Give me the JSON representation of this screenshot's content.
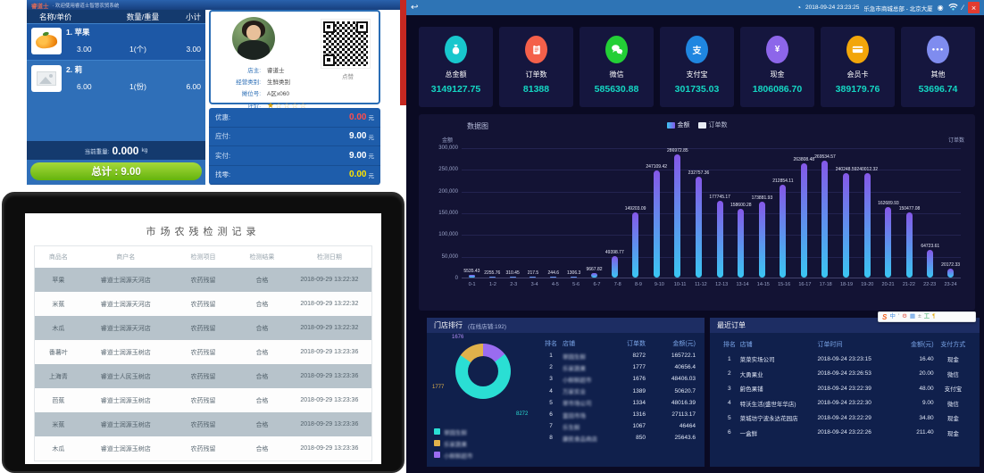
{
  "pos": {
    "window_logo": "睿道士",
    "window_title_rest": "· 欢迎使用睿道士智慧农贸系统",
    "list": {
      "headers": [
        "名称/单价",
        "数量/重量",
        "小计"
      ],
      "items": [
        {
          "line": "1. 苹果",
          "price": "3.00",
          "qty": "1(个)",
          "subtotal": "3.00",
          "thumb": "fruit"
        },
        {
          "line": "2. 莉",
          "price": "6.00",
          "qty": "1(份)",
          "subtotal": "6.00",
          "thumb": "placeholder"
        }
      ],
      "weight_label": "当前重量:",
      "weight_value": "0.000",
      "weight_unit": "kg",
      "total_text": "总计 : 9.00"
    },
    "merchant": {
      "fields": [
        {
          "label": "店主:",
          "value": "睿道士"
        },
        {
          "label": "经营类别:",
          "value": "生鲜类别"
        },
        {
          "label": "摊位号:",
          "value": "A区x060"
        }
      ],
      "rating_label": "评价:",
      "rating_stars": 1,
      "rating_total": 5,
      "qr_caption": "点赞"
    },
    "payment": {
      "rows": [
        {
          "label": "优惠:",
          "value": "0.00",
          "unit": "元",
          "color": "#ff4d4d"
        },
        {
          "label": "应付:",
          "value": "9.00",
          "unit": "元",
          "color": "#ffffff"
        },
        {
          "label": "实付:",
          "value": "9.00",
          "unit": "元",
          "color": "#ffffff"
        },
        {
          "label": "找零:",
          "value": "0.00",
          "unit": "元",
          "color": "#ffe400"
        }
      ]
    }
  },
  "tablet": {
    "title": "市场农残检测记录",
    "headers": [
      "商品名",
      "商户名",
      "检测项目",
      "检测结果",
      "检测日期"
    ],
    "rows": [
      [
        "苹果",
        "睿道士润源天河店",
        "农药残留",
        "合格",
        "2018-09-29 13:22:32"
      ],
      [
        "米蕉",
        "睿道士润源天河店",
        "农药残留",
        "合格",
        "2018-09-29 13:22:32"
      ],
      [
        "木瓜",
        "睿道士润源天河店",
        "农药残留",
        "合格",
        "2018-09-29 13:22:32"
      ],
      [
        "番薯叶",
        "睿道士润源玉树店",
        "农药残留",
        "合格",
        "2018-09-29 13:23:36"
      ],
      [
        "上海青",
        "睿道士人民玉树店",
        "农药残留",
        "合格",
        "2018-09-29 13:23:36"
      ],
      [
        "芭蕉",
        "睿道士润源玉树店",
        "农药残留",
        "合格",
        "2018-09-29 13:23:36"
      ],
      [
        "米蕉",
        "睿道士润源玉树店",
        "农药残留",
        "合格",
        "2018-09-29 13:23:36"
      ],
      [
        "木瓜",
        "睿道士润源玉树店",
        "农药残留",
        "合格",
        "2018-09-29 13:23:36"
      ]
    ]
  },
  "dashboard": {
    "topbar": {
      "datetime": "2018-09-24 23:23:25",
      "title": "乐急市商城总部 - 北京大厦",
      "icons": {
        "back": "↩",
        "clock": "◔",
        "contact": "◉",
        "edit": "∕",
        "close": "×"
      }
    },
    "stats": [
      {
        "label": "总金额",
        "value": "3149127.75",
        "color": "#18c7cd",
        "icon": "money-bag"
      },
      {
        "label": "订单数",
        "value": "81388",
        "color": "#f4604a",
        "icon": "order-list"
      },
      {
        "label": "微信",
        "value": "585630.88",
        "color": "#23cf36",
        "icon": "wechat"
      },
      {
        "label": "支付宝",
        "value": "301735.03",
        "color": "#1f86e0",
        "icon": "alipay"
      },
      {
        "label": "现金",
        "value": "1806086.70",
        "color": "#8d66ea",
        "icon": "yuan"
      },
      {
        "label": "会员卡",
        "value": "389179.76",
        "color": "#f2a60a",
        "icon": "member-card"
      },
      {
        "label": "其他",
        "value": "53696.74",
        "color": "#7f8cef",
        "icon": "ellipsis"
      }
    ],
    "store_rank": {
      "title": "门店排行",
      "subtitle": "(在线店铺:192)",
      "headers": [
        "排名",
        "店铺",
        "订单数",
        "金额(元)"
      ],
      "rows": [
        {
          "rank": "1",
          "store": "翠园生鲜",
          "orders": "8272",
          "amount": "165722.1"
        },
        {
          "rank": "2",
          "store": "乐家蔬果",
          "orders": "1777",
          "amount": "40656.4"
        },
        {
          "rank": "3",
          "store": "小鲜鲜超市",
          "orders": "1676",
          "amount": "48406.03"
        },
        {
          "rank": "4",
          "store": "万家实业",
          "orders": "1389",
          "amount": "50620.7"
        },
        {
          "rank": "5",
          "store": "翠市场公司",
          "orders": "1334",
          "amount": "48016.39"
        },
        {
          "rank": "6",
          "store": "富田市场",
          "orders": "1316",
          "amount": "27113.17"
        },
        {
          "rank": "7",
          "store": "乐生鲜",
          "orders": "1067",
          "amount": "46464"
        },
        {
          "rank": "8",
          "store": "康民食品商店",
          "orders": "850",
          "amount": "25643.6"
        }
      ]
    },
    "recent_orders": {
      "title": "最近订单",
      "headers": [
        "排名",
        "店铺",
        "订单时间",
        "金额(元)",
        "支付方式"
      ],
      "rows": [
        {
          "rank": "1",
          "store": "菜菜实场公司",
          "time": "2018-09-24 23:23:15",
          "amount": "16.40",
          "method": "现金"
        },
        {
          "rank": "2",
          "store": "大勇果业",
          "time": "2018-09-24 23:26:53",
          "amount": "20.00",
          "method": "微信"
        },
        {
          "rank": "3",
          "store": "蔚色果铺",
          "time": "2018-09-24 23:22:39",
          "amount": "48.00",
          "method": "支付宝"
        },
        {
          "rank": "4",
          "store": "特沃生活(盛世年华店)",
          "time": "2018-09-24 23:22:30",
          "amount": "9.00",
          "method": "微信"
        },
        {
          "rank": "5",
          "store": "菜城坊宁波永达花园店",
          "time": "2018-09-24 23:22:29",
          "amount": "34.80",
          "method": "现金"
        },
        {
          "rank": "6",
          "store": "一盒鲜",
          "time": "2018-09-24 23:22:26",
          "amount": "211.40",
          "method": "现金"
        }
      ]
    },
    "ime_toolbar": {
      "logo": "S",
      "keys": [
        "中",
        "'",
        "⚙",
        "▦",
        "±",
        "工",
        "¶"
      ]
    }
  },
  "chart_data": [
    {
      "type": "bar",
      "title": "数据图",
      "legend": [
        {
          "name": "金额",
          "active": true
        },
        {
          "name": "订单数",
          "active": false
        }
      ],
      "ylabel_left": "金额",
      "ylabel_right": "订单数",
      "categories": [
        "0-1",
        "1-2",
        "2-3",
        "3-4",
        "4-5",
        "5-6",
        "6-7",
        "7-8",
        "8-9",
        "9-10",
        "10-11",
        "11-12",
        "12-13",
        "13-14",
        "14-15",
        "15-16",
        "16-17",
        "17-18",
        "18-19",
        "19-20",
        "20-21",
        "21-22",
        "22-23",
        "23-24"
      ],
      "values": [
        5535.43,
        2255.76,
        310.45,
        217.5,
        244.6,
        1306.3,
        9667.82,
        49398.77,
        149203.09,
        247109.42,
        286972.85,
        232757.36,
        177745.17,
        158600.28,
        173881.93,
        212854.11,
        263808.48,
        269534.57,
        240248.59,
        240012.32,
        162689.93,
        150477.08,
        64723.61,
        20172.33
      ],
      "ylim": [
        0,
        300000
      ],
      "yticks": [
        "300,000",
        "250,000",
        "200,000",
        "150,000",
        "100,000",
        "50,000",
        "0"
      ],
      "grid": true,
      "legend_position": "top-center",
      "bar_gradient": [
        "#3ac6f2",
        "#8558e8"
      ]
    },
    {
      "type": "pie",
      "donut": true,
      "slices": [
        {
          "name": "翠园生鲜",
          "value": 8272,
          "color": "#2adfd4"
        },
        {
          "name": "乐家蔬果",
          "value": 1777,
          "color": "#e0b14b"
        },
        {
          "name": "小鲜鲜超市",
          "value": 1676,
          "color": "#9a6cf0"
        }
      ],
      "draw_order": [
        2,
        0,
        1
      ],
      "legend_position": "bottom-left"
    }
  ]
}
